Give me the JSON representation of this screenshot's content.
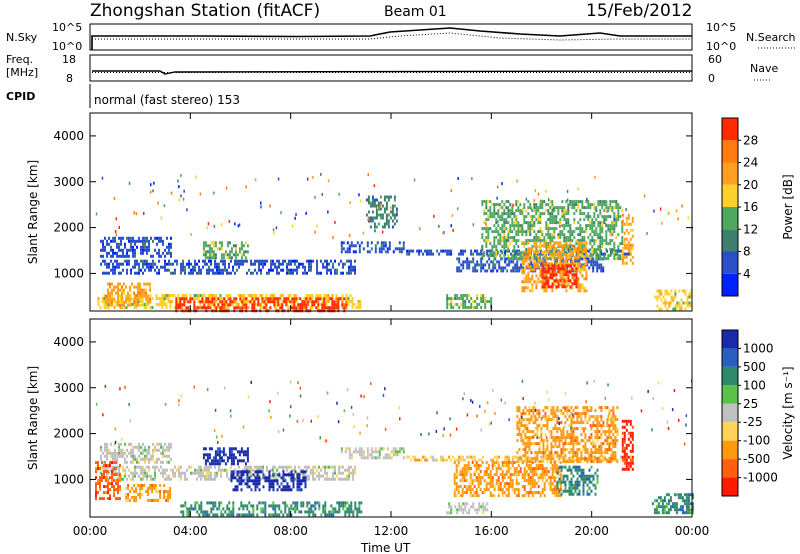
{
  "header": {
    "station": "Zhongshan Station (fitACF)",
    "beam": "Beam 01",
    "date": "15/Feb/2012"
  },
  "top_panels": {
    "nsky_label": "N.Sky",
    "nsearch_label": "N.Search",
    "nsky_ticks": [
      "10^5",
      "10^0"
    ],
    "nsearch_ticks": [
      "10^5",
      "10^0"
    ],
    "freq_label_1": "Freq.",
    "freq_label_2": "[MHz]",
    "freq_ticks": [
      "18",
      "8"
    ],
    "nave_label": "Nave",
    "nave_ticks": [
      "60",
      "0"
    ],
    "cpid_label": "CPID",
    "cpid_text": "normal (fast stereo) 153"
  },
  "colors": {
    "power": [
      "#0022ff",
      "#2a4fc8",
      "#3f7f6e",
      "#4fa860",
      "#ffd02a",
      "#ffa020",
      "#ff7a10",
      "#ff2a00"
    ],
    "velocity": [
      "#1a2aa8",
      "#2a5fbf",
      "#2e8a6a",
      "#59c24a",
      "#c0c0c0",
      "#ffd25a",
      "#ff9a10",
      "#ff6010",
      "#ff1a00"
    ]
  },
  "chart_data": [
    {
      "type": "heatmap",
      "name": "Power",
      "ylabel": "Slant Range [km]",
      "y_ticks": [
        1000,
        2000,
        3000,
        4000
      ],
      "ylim": [
        180,
        4500
      ],
      "xlim_hours": [
        0,
        24
      ],
      "colorbar_label": "Power [dB]",
      "colorbar_ticks": [
        "4",
        "8",
        "12",
        "16",
        "20",
        "24",
        "28"
      ],
      "colorbar_range": [
        0,
        32
      ],
      "regions": [
        {
          "t0": 0.4,
          "t1": 10.6,
          "r0": 1000,
          "r1": 1300,
          "level": 1
        },
        {
          "t0": 0.4,
          "t1": 3.2,
          "r0": 1350,
          "r1": 1800,
          "level": 1
        },
        {
          "t0": 4.5,
          "t1": 6.3,
          "r0": 1350,
          "r1": 1700,
          "level": 3
        },
        {
          "t0": 0.3,
          "t1": 10.8,
          "r0": 250,
          "r1": 550,
          "level": 4
        },
        {
          "t0": 0.6,
          "t1": 2.4,
          "r0": 300,
          "r1": 800,
          "level": 5
        },
        {
          "t0": 3.4,
          "t1": 10.2,
          "r0": 200,
          "r1": 480,
          "level": 7
        },
        {
          "t0": 10.0,
          "t1": 12.5,
          "r0": 1500,
          "r1": 1700,
          "level": 1
        },
        {
          "t0": 12.6,
          "t1": 21.6,
          "r0": 1400,
          "r1": 1520,
          "level": 1
        },
        {
          "t0": 14.6,
          "t1": 20.5,
          "r0": 1050,
          "r1": 1350,
          "level": 1
        },
        {
          "t0": 15.6,
          "t1": 21.2,
          "r0": 1300,
          "r1": 2600,
          "level": 3
        },
        {
          "t0": 17.2,
          "t1": 19.8,
          "r0": 600,
          "r1": 1700,
          "level": 5
        },
        {
          "t0": 18.0,
          "t1": 19.4,
          "r0": 700,
          "r1": 1200,
          "level": 7
        },
        {
          "t0": 14.2,
          "t1": 16.0,
          "r0": 250,
          "r1": 550,
          "level": 3
        },
        {
          "t0": 22.5,
          "t1": 24.0,
          "r0": 250,
          "r1": 650,
          "level": 4
        },
        {
          "t0": 11.0,
          "t1": 12.2,
          "r0": 2000,
          "r1": 2700,
          "level": 2
        },
        {
          "t0": 21.2,
          "t1": 21.6,
          "r0": 1200,
          "r1": 2300,
          "level": 5
        }
      ]
    },
    {
      "type": "heatmap",
      "name": "Velocity",
      "ylabel": "Slant Range [km]",
      "y_ticks": [
        1000,
        2000,
        3000,
        4000
      ],
      "ylim": [
        180,
        4500
      ],
      "xlim_hours": [
        0,
        24
      ],
      "xlabel": "Time UT",
      "x_ticks": [
        "00:00",
        "04:00",
        "08:00",
        "12:00",
        "16:00",
        "20:00",
        "00:00"
      ],
      "colorbar_label": "Velocity [m s⁻¹]",
      "colorbar_ticks": [
        "1000",
        "500",
        "100",
        "25",
        "-25",
        "-100",
        "-500",
        "-1000"
      ],
      "colorbar_range": [
        -1200,
        1200
      ],
      "regions": [
        {
          "t0": 0.4,
          "t1": 10.6,
          "r0": 1000,
          "r1": 1300,
          "level": 4
        },
        {
          "t0": 0.4,
          "t1": 3.2,
          "r0": 1350,
          "r1": 1800,
          "level": 4
        },
        {
          "t0": 0.2,
          "t1": 1.2,
          "r0": 600,
          "r1": 1400,
          "level": 7
        },
        {
          "t0": 4.5,
          "t1": 6.3,
          "r0": 1350,
          "r1": 1700,
          "level": 0
        },
        {
          "t0": 5.6,
          "t1": 8.6,
          "r0": 750,
          "r1": 1200,
          "level": 0
        },
        {
          "t0": 3.6,
          "t1": 10.8,
          "r0": 220,
          "r1": 520,
          "level": 2
        },
        {
          "t0": 1.4,
          "t1": 3.2,
          "r0": 550,
          "r1": 900,
          "level": 6
        },
        {
          "t0": 10.0,
          "t1": 12.5,
          "r0": 1500,
          "r1": 1700,
          "level": 4
        },
        {
          "t0": 12.6,
          "t1": 21.6,
          "r0": 1400,
          "r1": 1520,
          "level": 5
        },
        {
          "t0": 14.5,
          "t1": 18.8,
          "r0": 650,
          "r1": 1400,
          "level": 6
        },
        {
          "t0": 17.0,
          "t1": 21.0,
          "r0": 1400,
          "r1": 2600,
          "level": 6
        },
        {
          "t0": 18.6,
          "t1": 20.2,
          "r0": 700,
          "r1": 1300,
          "level": 2
        },
        {
          "t0": 21.2,
          "t1": 21.6,
          "r0": 1200,
          "r1": 2300,
          "level": 8
        },
        {
          "t0": 22.4,
          "t1": 24.0,
          "r0": 250,
          "r1": 700,
          "level": 2
        },
        {
          "t0": 14.2,
          "t1": 15.8,
          "r0": 250,
          "r1": 500,
          "level": 4
        }
      ]
    }
  ]
}
